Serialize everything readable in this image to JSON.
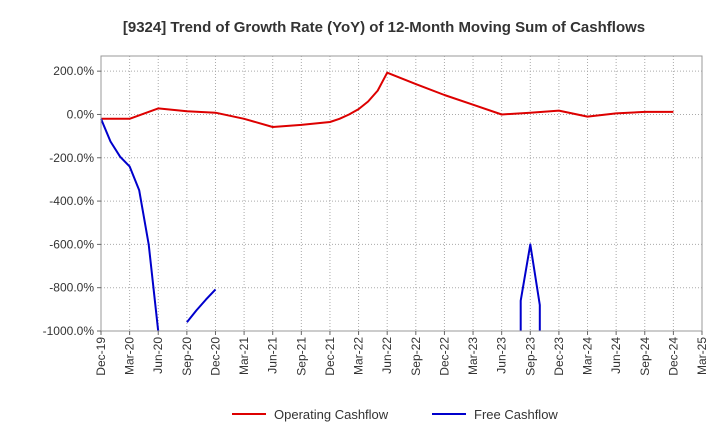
{
  "chart_data": {
    "type": "line",
    "title": "[9324]  Trend of Growth Rate (YoY) of 12-Month Moving Sum of Cashflows",
    "xlabel": "",
    "ylabel": "",
    "ylim": [
      -1000,
      270
    ],
    "y_ticks": [
      200,
      0,
      -200,
      -400,
      -600,
      -800,
      -1000
    ],
    "y_tick_labels": [
      "200.0%",
      "0.0%",
      "-200.0%",
      "-400.0%",
      "-600.0%",
      "-800.0%",
      "-1000.0%"
    ],
    "x_tick_labels": [
      "Dec-19",
      "Mar-20",
      "Jun-20",
      "Sep-20",
      "Dec-20",
      "Mar-21",
      "Jun-21",
      "Sep-21",
      "Dec-21",
      "Mar-22",
      "Jun-22",
      "Sep-22",
      "Dec-22",
      "Mar-23",
      "Jun-23",
      "Sep-23",
      "Dec-23",
      "Mar-24",
      "Jun-24",
      "Sep-24",
      "Dec-24",
      "Mar-25"
    ],
    "grid": true,
    "legend_position": "bottom",
    "series": [
      {
        "name": "Operating Cashflow",
        "color": "#dd0000",
        "points": [
          [
            "Dec-19",
            -20
          ],
          [
            "Mar-20",
            -20
          ],
          [
            "Jun-20",
            28
          ],
          [
            "Sep-20",
            15
          ],
          [
            "Dec-20",
            8
          ],
          [
            "Mar-21",
            -20
          ],
          [
            "Jun-21",
            -58
          ],
          [
            "Sep-21",
            -48
          ],
          [
            "Dec-21",
            -35
          ],
          [
            "Jan-22",
            -20
          ],
          [
            "Feb-22",
            0
          ],
          [
            "Mar-22",
            25
          ],
          [
            "Apr-22",
            60
          ],
          [
            "May-22",
            110
          ],
          [
            "Jun-22",
            193
          ],
          [
            "Sep-22",
            140
          ],
          [
            "Dec-22",
            90
          ],
          [
            "Mar-23",
            45
          ],
          [
            "Jun-23",
            0
          ],
          [
            "Sep-23",
            8
          ],
          [
            "Dec-23",
            18
          ],
          [
            "Mar-24",
            -10
          ],
          [
            "Jun-24",
            5
          ],
          [
            "Sep-24",
            12
          ],
          [
            "Dec-24",
            12
          ]
        ]
      },
      {
        "name": "Free Cashflow",
        "color": "#0000cc",
        "segments": [
          [
            [
              "Dec-19",
              -20
            ],
            [
              "Jan-20",
              -125
            ],
            [
              "Feb-20",
              -195
            ],
            [
              "Mar-20",
              -240
            ],
            [
              "Apr-20",
              -350
            ],
            [
              "May-20",
              -600
            ],
            [
              "Jun-20",
              -1000
            ]
          ],
          [
            [
              "Sep-20",
              -960
            ],
            [
              "Oct-20",
              -905
            ],
            [
              "Nov-20",
              -855
            ],
            [
              "Dec-20",
              -808
            ]
          ],
          [
            [
              "Aug-23",
              -1000
            ],
            [
              "Aug-23",
              -860
            ],
            [
              "Sep-23",
              -600
            ],
            [
              "Oct-23",
              -880
            ],
            [
              "Oct-23",
              -1000
            ]
          ]
        ]
      }
    ]
  }
}
